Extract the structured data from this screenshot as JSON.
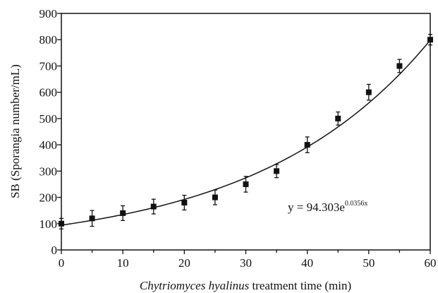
{
  "chart_data": {
    "type": "scatter",
    "x": [
      0,
      5,
      10,
      15,
      20,
      25,
      30,
      35,
      40,
      45,
      50,
      55,
      60
    ],
    "y": [
      100,
      120,
      140,
      165,
      180,
      200,
      250,
      300,
      400,
      500,
      600,
      700,
      800
    ],
    "error": [
      20,
      30,
      28,
      28,
      28,
      28,
      30,
      25,
      30,
      25,
      30,
      25,
      20
    ],
    "fit": {
      "type": "exponential",
      "a": 94.303,
      "b": 0.0356
    },
    "equation": {
      "base": "y = 94.303e",
      "exponent": "0.0356x"
    },
    "xlabel": {
      "italic": "Chytriomyces hyalinus",
      "rest": " treatment time (min)"
    },
    "ylabel": "SB (Sporangia number/mL)",
    "xlim": [
      0,
      60
    ],
    "ylim": [
      0,
      900
    ],
    "xticks": [
      "0",
      "10",
      "20",
      "30",
      "40",
      "50",
      "60"
    ],
    "yticks": [
      "0",
      "100",
      "200",
      "300",
      "400",
      "500",
      "600",
      "700",
      "800",
      "900"
    ],
    "grid": false,
    "legend": "none",
    "marker": "square",
    "color": "#111111"
  }
}
